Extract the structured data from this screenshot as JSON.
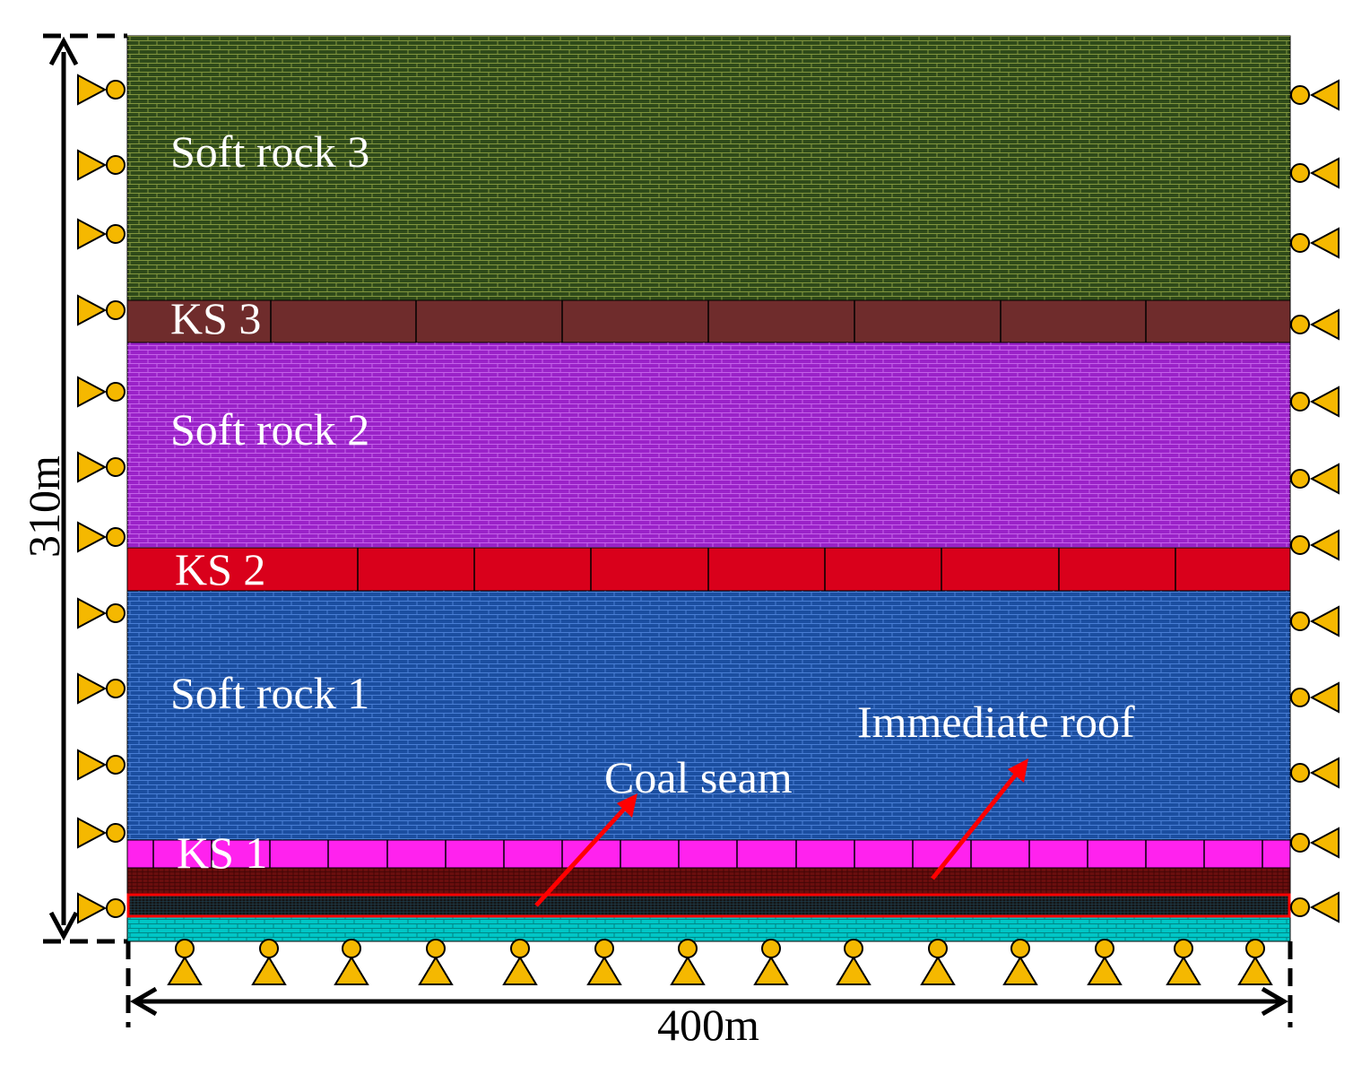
{
  "diagram": {
    "layers": [
      {
        "id": "soft-rock-3",
        "label": "Soft rock 3",
        "color": "#2f4a1a",
        "pattern": "small-brick"
      },
      {
        "id": "ks-3",
        "label": "KS 3",
        "color": "#6f2c2c",
        "pattern": "large-block"
      },
      {
        "id": "soft-rock-2",
        "label": "Soft rock 2",
        "color": "#9a22c8",
        "pattern": "small-brick"
      },
      {
        "id": "ks-2",
        "label": "KS 2",
        "color": "#d9001b",
        "pattern": "large-block"
      },
      {
        "id": "soft-rock-1",
        "label": "Soft rock 1",
        "color": "#1b4ea0",
        "pattern": "small-brick"
      },
      {
        "id": "ks-1",
        "label": "KS 1",
        "color": "#ff22ee",
        "pattern": "large-block"
      },
      {
        "id": "immediate-roof",
        "label": "",
        "color": "#6a0e0e",
        "pattern": "fine-mesh"
      },
      {
        "id": "coal-seam",
        "label": "",
        "color": "#141414",
        "pattern": "fine-mesh"
      },
      {
        "id": "floor",
        "label": "",
        "color": "#00c6c6",
        "pattern": "small-brick"
      }
    ],
    "annotations": {
      "coal_seam": "Coal seam",
      "immediate_roof": "Immediate roof",
      "arrow_color": "#ff0000"
    },
    "dimensions": {
      "height": "310m",
      "width": "400m"
    },
    "support_color": "#f5b800"
  }
}
